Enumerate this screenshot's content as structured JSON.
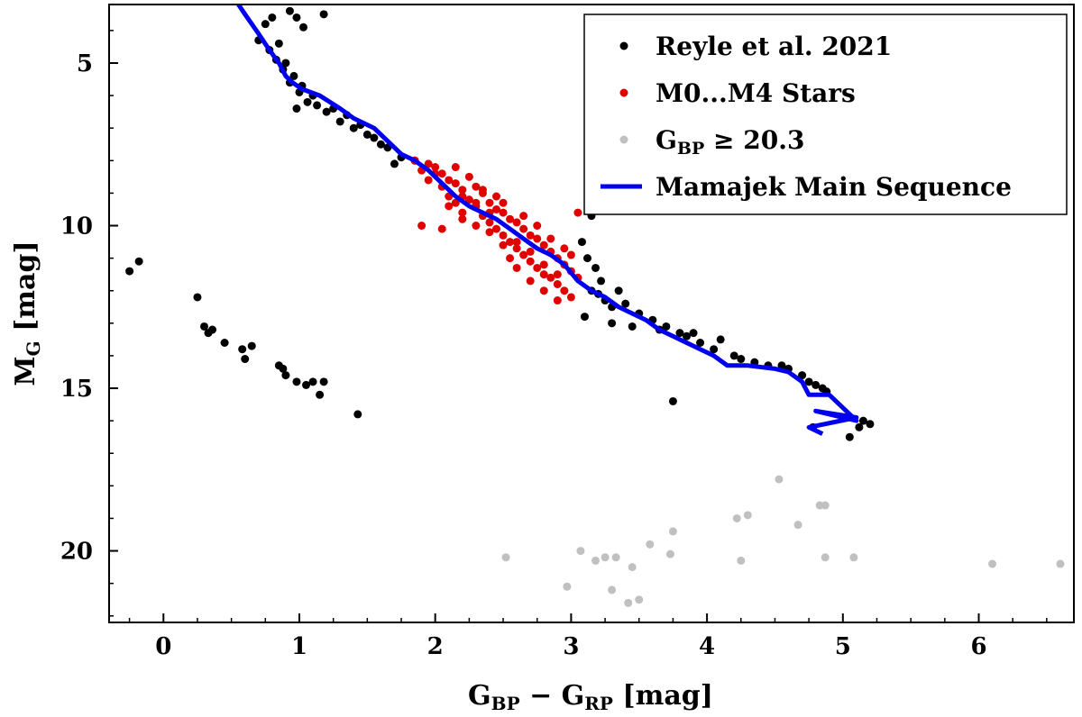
{
  "chart_data": {
    "type": "scatter",
    "xlabel": "G_BP − G_RP [mag]",
    "ylabel": "M_G [mag]",
    "xlim": [
      -0.4,
      6.7
    ],
    "ylim": [
      22.2,
      3.2
    ],
    "y_inverted": true,
    "grid": false,
    "legend_placement": "top-right",
    "x_ticks": [
      0,
      1,
      2,
      3,
      4,
      5,
      6
    ],
    "y_ticks": [
      5,
      10,
      15,
      20
    ],
    "legend": [
      {
        "label": "Reyle et al. 2021",
        "marker": "dot",
        "color": "#000000"
      },
      {
        "label": "M0...M4 Stars",
        "marker": "dot",
        "color": "#e00000"
      },
      {
        "label": "G_BP ≥ 20.3",
        "marker": "dot",
        "color": "#c0c0c0"
      },
      {
        "label": "Mamajek Main Sequence",
        "marker": "line",
        "color": "#0000ee"
      }
    ],
    "series": [
      {
        "name": "Reyle et al. 2021",
        "color": "#000000",
        "points": [
          [
            0.75,
            3.8
          ],
          [
            0.8,
            3.6
          ],
          [
            0.93,
            3.4
          ],
          [
            0.98,
            3.6
          ],
          [
            1.03,
            3.9
          ],
          [
            1.18,
            3.5
          ],
          [
            0.7,
            4.3
          ],
          [
            0.78,
            4.6
          ],
          [
            0.83,
            4.9
          ],
          [
            0.88,
            5.2
          ],
          [
            0.93,
            5.6
          ],
          [
            1.0,
            5.9
          ],
          [
            1.06,
            6.2
          ],
          [
            1.13,
            6.3
          ],
          [
            1.2,
            6.5
          ],
          [
            0.85,
            4.4
          ],
          [
            0.9,
            5.0
          ],
          [
            0.96,
            5.4
          ],
          [
            1.02,
            5.7
          ],
          [
            0.98,
            6.4
          ],
          [
            1.1,
            6.0
          ],
          [
            1.25,
            6.4
          ],
          [
            1.35,
            6.6
          ],
          [
            1.45,
            6.9
          ],
          [
            1.55,
            7.3
          ],
          [
            1.65,
            7.6
          ],
          [
            1.75,
            7.9
          ],
          [
            1.7,
            8.1
          ],
          [
            1.85,
            8.0
          ],
          [
            1.3,
            6.8
          ],
          [
            1.4,
            7.0
          ],
          [
            1.5,
            7.2
          ],
          [
            1.6,
            7.5
          ],
          [
            3.08,
            10.5
          ],
          [
            3.12,
            11.0
          ],
          [
            3.18,
            11.3
          ],
          [
            3.22,
            11.7
          ],
          [
            3.15,
            12.0
          ],
          [
            3.25,
            12.3
          ],
          [
            3.3,
            12.5
          ],
          [
            3.2,
            12.1
          ],
          [
            3.35,
            12.0
          ],
          [
            3.4,
            12.4
          ],
          [
            3.5,
            12.7
          ],
          [
            3.6,
            12.9
          ],
          [
            3.7,
            13.1
          ],
          [
            3.8,
            13.3
          ],
          [
            3.85,
            13.4
          ],
          [
            3.95,
            13.6
          ],
          [
            4.05,
            13.8
          ],
          [
            4.2,
            14.0
          ],
          [
            4.25,
            14.1
          ],
          [
            4.35,
            14.2
          ],
          [
            4.45,
            14.3
          ],
          [
            4.55,
            14.3
          ],
          [
            3.15,
            9.7
          ],
          [
            3.45,
            13.1
          ],
          [
            3.65,
            13.2
          ],
          [
            3.9,
            13.3
          ],
          [
            4.1,
            13.5
          ],
          [
            3.1,
            12.8
          ],
          [
            3.3,
            13.0
          ],
          [
            4.6,
            14.4
          ],
          [
            4.7,
            14.6
          ],
          [
            4.75,
            14.8
          ],
          [
            4.8,
            14.9
          ],
          [
            4.85,
            15.0
          ],
          [
            4.88,
            15.1
          ],
          [
            3.75,
            15.4
          ],
          [
            4.78,
            16.2
          ],
          [
            5.05,
            16.5
          ],
          [
            5.12,
            16.2
          ],
          [
            5.15,
            16.0
          ],
          [
            5.2,
            16.1
          ],
          [
            -0.25,
            11.4
          ],
          [
            -0.18,
            11.1
          ],
          [
            0.25,
            12.2
          ],
          [
            0.3,
            13.1
          ],
          [
            0.33,
            13.3
          ],
          [
            0.36,
            13.2
          ],
          [
            0.45,
            13.6
          ],
          [
            0.58,
            13.8
          ],
          [
            0.65,
            13.7
          ],
          [
            0.6,
            14.1
          ],
          [
            0.85,
            14.3
          ],
          [
            0.88,
            14.4
          ],
          [
            0.9,
            14.6
          ],
          [
            0.98,
            14.8
          ],
          [
            1.05,
            14.9
          ],
          [
            1.1,
            14.8
          ],
          [
            1.18,
            14.8
          ],
          [
            1.15,
            15.2
          ],
          [
            1.43,
            15.8
          ]
        ]
      },
      {
        "name": "M0...M4 Stars",
        "color": "#e00000",
        "points": [
          [
            1.85,
            8.0
          ],
          [
            1.9,
            8.3
          ],
          [
            1.95,
            8.6
          ],
          [
            2.0,
            8.4
          ],
          [
            2.05,
            8.8
          ],
          [
            2.1,
            9.1
          ],
          [
            2.15,
            9.3
          ],
          [
            2.2,
            9.6
          ],
          [
            2.25,
            9.2
          ],
          [
            2.3,
            9.4
          ],
          [
            2.35,
            9.7
          ],
          [
            2.4,
            9.9
          ],
          [
            2.45,
            10.1
          ],
          [
            2.5,
            10.3
          ],
          [
            2.55,
            10.5
          ],
          [
            2.6,
            10.7
          ],
          [
            2.65,
            10.9
          ],
          [
            2.7,
            11.1
          ],
          [
            2.75,
            11.3
          ],
          [
            2.8,
            11.5
          ],
          [
            2.85,
            11.6
          ],
          [
            2.9,
            11.8
          ],
          [
            2.95,
            12.0
          ],
          [
            3.0,
            12.2
          ],
          [
            2.0,
            8.2
          ],
          [
            2.05,
            8.4
          ],
          [
            2.1,
            8.6
          ],
          [
            2.15,
            8.7
          ],
          [
            2.2,
            8.9
          ],
          [
            2.25,
            8.5
          ],
          [
            2.3,
            8.8
          ],
          [
            2.35,
            9.0
          ],
          [
            2.4,
            9.3
          ],
          [
            2.45,
            9.5
          ],
          [
            2.5,
            9.6
          ],
          [
            2.55,
            9.8
          ],
          [
            2.6,
            9.9
          ],
          [
            2.65,
            10.1
          ],
          [
            2.7,
            10.3
          ],
          [
            2.75,
            10.4
          ],
          [
            2.8,
            10.6
          ],
          [
            2.85,
            10.8
          ],
          [
            2.9,
            11.0
          ],
          [
            2.95,
            11.2
          ],
          [
            3.0,
            11.4
          ],
          [
            3.05,
            11.6
          ],
          [
            2.1,
            9.4
          ],
          [
            2.2,
            9.8
          ],
          [
            2.3,
            10.0
          ],
          [
            2.4,
            10.2
          ],
          [
            2.5,
            10.6
          ],
          [
            2.55,
            11.0
          ],
          [
            2.6,
            11.3
          ],
          [
            2.7,
            11.7
          ],
          [
            2.8,
            12.0
          ],
          [
            2.9,
            12.3
          ],
          [
            1.9,
            10.0
          ],
          [
            2.05,
            10.1
          ],
          [
            3.05,
            9.6
          ],
          [
            2.15,
            8.2
          ],
          [
            2.35,
            8.9
          ],
          [
            2.45,
            9.1
          ],
          [
            2.65,
            9.7
          ],
          [
            2.75,
            10.0
          ],
          [
            2.85,
            10.4
          ],
          [
            2.95,
            10.7
          ],
          [
            3.0,
            10.9
          ],
          [
            2.6,
            10.5
          ],
          [
            2.7,
            10.8
          ],
          [
            2.5,
            9.3
          ],
          [
            2.4,
            9.6
          ],
          [
            2.3,
            9.3
          ],
          [
            2.2,
            9.1
          ],
          [
            1.95,
            8.1
          ],
          [
            2.8,
            11.2
          ],
          [
            2.9,
            11.5
          ]
        ]
      },
      {
        "name": "G_BP ≥ 20.3",
        "color": "#c0c0c0",
        "points": [
          [
            2.52,
            20.2
          ],
          [
            2.97,
            21.1
          ],
          [
            3.07,
            20.0
          ],
          [
            3.18,
            20.3
          ],
          [
            3.25,
            20.2
          ],
          [
            3.33,
            20.2
          ],
          [
            3.3,
            21.2
          ],
          [
            3.42,
            21.6
          ],
          [
            3.45,
            20.5
          ],
          [
            3.5,
            21.5
          ],
          [
            3.58,
            19.8
          ],
          [
            3.73,
            20.1
          ],
          [
            3.75,
            19.4
          ],
          [
            4.22,
            19.0
          ],
          [
            4.3,
            18.9
          ],
          [
            4.25,
            20.3
          ],
          [
            4.53,
            17.8
          ],
          [
            4.67,
            19.2
          ],
          [
            4.83,
            18.6
          ],
          [
            4.87,
            18.6
          ],
          [
            4.87,
            20.2
          ],
          [
            5.08,
            20.2
          ],
          [
            6.1,
            20.4
          ],
          [
            6.6,
            20.4
          ]
        ]
      }
    ],
    "main_sequence": {
      "name": "Mamajek Main Sequence",
      "color": "#0000ee",
      "points": [
        [
          0.52,
          3.0
        ],
        [
          0.6,
          3.5
        ],
        [
          0.7,
          4.1
        ],
        [
          0.78,
          4.6
        ],
        [
          0.85,
          5.0
        ],
        [
          0.9,
          5.4
        ],
        [
          0.95,
          5.6
        ],
        [
          1.02,
          5.8
        ],
        [
          1.15,
          6.0
        ],
        [
          1.3,
          6.4
        ],
        [
          1.4,
          6.7
        ],
        [
          1.55,
          7.0
        ],
        [
          1.65,
          7.4
        ],
        [
          1.75,
          7.8
        ],
        [
          1.85,
          8.0
        ],
        [
          1.95,
          8.3
        ],
        [
          2.05,
          8.7
        ],
        [
          2.15,
          9.1
        ],
        [
          2.25,
          9.4
        ],
        [
          2.35,
          9.6
        ],
        [
          2.45,
          9.8
        ],
        [
          2.55,
          10.1
        ],
        [
          2.65,
          10.4
        ],
        [
          2.75,
          10.7
        ],
        [
          2.85,
          10.9
        ],
        [
          2.95,
          11.2
        ],
        [
          3.05,
          11.7
        ],
        [
          3.15,
          12.0
        ],
        [
          3.25,
          12.2
        ],
        [
          3.35,
          12.5
        ],
        [
          3.45,
          12.7
        ],
        [
          3.55,
          12.9
        ],
        [
          3.65,
          13.2
        ],
        [
          3.75,
          13.4
        ],
        [
          3.85,
          13.6
        ],
        [
          3.95,
          13.8
        ],
        [
          4.05,
          14.0
        ],
        [
          4.15,
          14.3
        ],
        [
          4.3,
          14.3
        ],
        [
          4.5,
          14.4
        ],
        [
          4.6,
          14.5
        ],
        [
          4.7,
          14.8
        ],
        [
          4.75,
          15.2
        ],
        [
          4.9,
          15.2
        ],
        [
          5.0,
          15.6
        ],
        [
          5.1,
          16.0
        ],
        [
          4.8,
          15.7
        ],
        [
          5.1,
          15.9
        ],
        [
          4.75,
          16.2
        ],
        [
          4.85,
          16.4
        ]
      ]
    }
  }
}
